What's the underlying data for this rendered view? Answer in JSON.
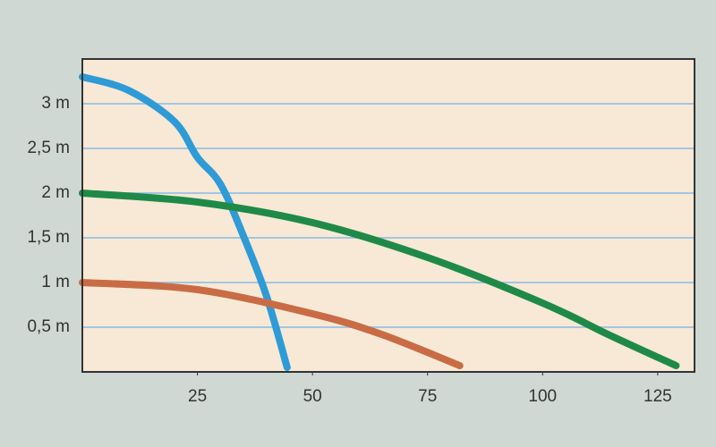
{
  "chart_data": {
    "type": "line",
    "xlim": [
      0,
      133
    ],
    "xticks": [
      25,
      50,
      75,
      100,
      125
    ],
    "ylim": [
      0,
      3.5
    ],
    "yticks": [
      {
        "value": 0.5,
        "label": "0,5 m"
      },
      {
        "value": 1,
        "label": "1 m"
      },
      {
        "value": 1.5,
        "label": "1,5 m"
      },
      {
        "value": 2,
        "label": "2 m"
      },
      {
        "value": 2.5,
        "label": "2,5 m"
      },
      {
        "value": 3,
        "label": "3 m"
      }
    ],
    "grid": true,
    "series": [
      {
        "color": "#2f9bd6",
        "x": [
          0,
          10,
          20,
          25,
          30,
          35,
          40,
          44.5
        ],
        "values": [
          3.3,
          3.15,
          2.8,
          2.4,
          2.1,
          1.52,
          0.85,
          0.05
        ]
      },
      {
        "color": "#1f8a48",
        "x": [
          0,
          25,
          50,
          75,
          100,
          115,
          129
        ],
        "values": [
          2.0,
          1.9,
          1.67,
          1.28,
          0.77,
          0.4,
          0.07
        ]
      },
      {
        "color": "#c96c45",
        "x": [
          0,
          25,
          50,
          65,
          82
        ],
        "values": [
          1.0,
          0.92,
          0.65,
          0.42,
          0.07
        ]
      }
    ]
  }
}
